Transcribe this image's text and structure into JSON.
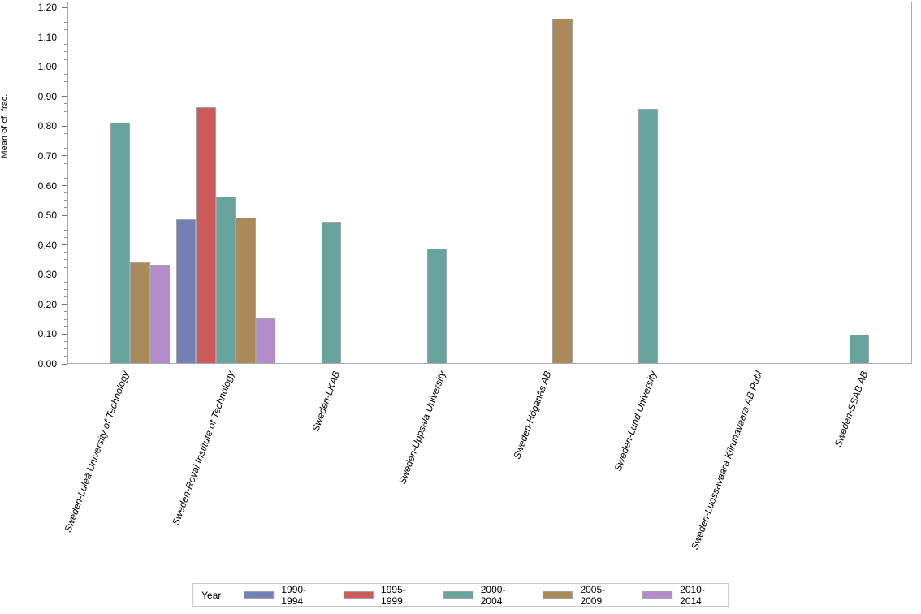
{
  "colors": {
    "axis_frame": "#A5ABB0",
    "bar_border": "#9FA5AA",
    "series_blue": "#7280B3",
    "series_red": "#CD5B5C",
    "series_teal": "#68A49E",
    "series_tan": "#AA895B",
    "series_purple": "#B48CCB"
  },
  "chart_data": {
    "type": "bar",
    "title": "",
    "xlabel": "",
    "ylabel": "Mean of cf, frac.",
    "ylim": [
      0.0,
      1.2
    ],
    "ytick_step": 0.1,
    "yminor_per_major": 3,
    "grid": false,
    "legend_title": "Year",
    "legend_position": "bottom",
    "categories": [
      "Sweden-Luleå University of Technology",
      "Sweden-Royal Institute of Technology",
      "Sweden-LKAB",
      "Sweden-Uppsala University",
      "Sweden-Höganäs AB",
      "Sweden-Lund University",
      "Sweden-Luossavaara Kiirunavaara AB Publ",
      "Sweden-SSAB AB"
    ],
    "series": [
      {
        "name": "1990-1994",
        "color": "#7280B3",
        "values": [
          null,
          0.485,
          null,
          null,
          null,
          null,
          null,
          null
        ]
      },
      {
        "name": "1995-1999",
        "color": "#CD5B5C",
        "values": [
          null,
          0.86,
          null,
          null,
          null,
          null,
          null,
          null
        ]
      },
      {
        "name": "2000-2004",
        "color": "#68A49E",
        "values": [
          0.81,
          0.56,
          0.475,
          0.385,
          null,
          0.855,
          null,
          0.095
        ]
      },
      {
        "name": "2005-2009",
        "color": "#AA895B",
        "values": [
          0.34,
          0.49,
          null,
          null,
          1.16,
          null,
          null,
          null
        ]
      },
      {
        "name": "2010-2014",
        "color": "#B48CCB",
        "values": [
          0.33,
          0.15,
          null,
          null,
          null,
          null,
          null,
          null
        ]
      }
    ]
  }
}
